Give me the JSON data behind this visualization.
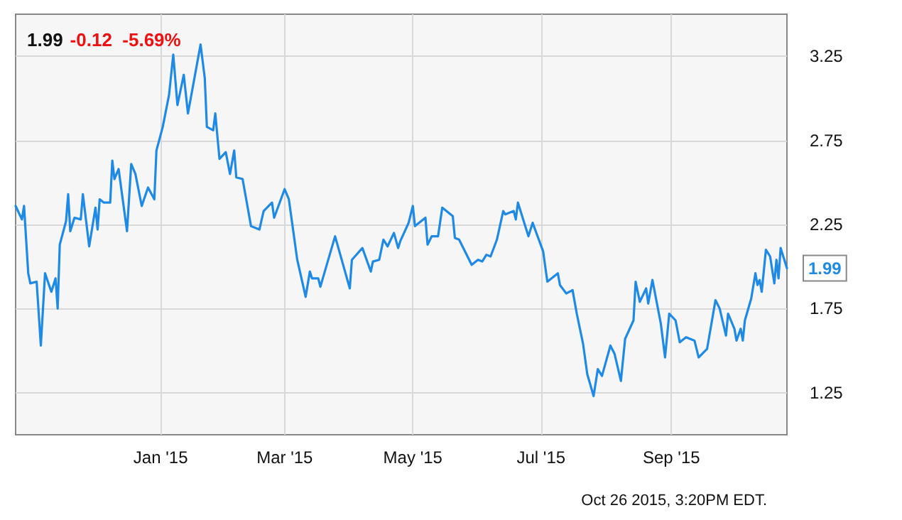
{
  "chart_data": {
    "type": "line",
    "title": "1.99",
    "subtitle": "-0.12  -5.69%",
    "x": [
      "2014-10-24",
      "2014-10-27",
      "2014-10-28",
      "2014-10-30",
      "2014-10-31",
      "2014-11-03",
      "2014-11-05",
      "2014-11-07",
      "2014-11-10",
      "2014-11-12",
      "2014-11-13",
      "2014-11-14",
      "2014-11-17",
      "2014-11-18",
      "2014-11-19",
      "2014-11-21",
      "2014-11-24",
      "2014-11-25",
      "2014-11-28",
      "2014-12-01",
      "2014-12-02",
      "2014-12-03",
      "2014-12-05",
      "2014-12-08",
      "2014-12-09",
      "2014-12-10",
      "2014-12-12",
      "2014-12-16",
      "2014-12-18",
      "2014-12-20",
      "2014-12-23",
      "2014-12-26",
      "2014-12-29",
      "2014-12-30",
      "2015-01-02",
      "2015-01-05",
      "2015-01-07",
      "2015-01-09",
      "2015-01-12",
      "2015-01-14",
      "2015-01-20",
      "2015-01-22",
      "2015-01-23",
      "2015-01-26",
      "2015-01-27",
      "2015-01-29",
      "2015-02-01",
      "2015-02-03",
      "2015-02-05",
      "2015-02-06",
      "2015-02-09",
      "2015-02-13",
      "2015-02-17",
      "2015-02-19",
      "2015-02-23",
      "2015-02-24",
      "2015-03-01",
      "2015-03-03",
      "2015-03-07",
      "2015-03-11",
      "2015-03-13",
      "2015-03-14",
      "2015-03-17",
      "2015-03-18",
      "2015-03-25",
      "2015-04-01",
      "2015-04-02",
      "2015-04-07",
      "2015-04-11",
      "2015-04-12",
      "2015-04-15",
      "2015-04-17",
      "2015-04-19",
      "2015-04-22",
      "2015-04-24",
      "2015-04-25",
      "2015-04-29",
      "2015-05-01",
      "2015-05-02",
      "2015-05-07",
      "2015-05-08",
      "2015-05-10",
      "2015-05-13",
      "2015-05-15",
      "2015-05-20",
      "2015-05-21",
      "2015-05-23",
      "2015-05-29",
      "2015-06-01",
      "2015-06-03",
      "2015-06-05",
      "2015-06-07",
      "2015-06-10",
      "2015-06-13",
      "2015-06-14",
      "2015-06-18",
      "2015-06-19",
      "2015-06-20",
      "2015-06-25",
      "2015-06-27",
      "2015-07-02",
      "2015-07-04",
      "2015-07-09",
      "2015-07-10",
      "2015-07-13",
      "2015-07-16",
      "2015-07-18",
      "2015-07-21",
      "2015-07-23",
      "2015-07-26",
      "2015-07-28",
      "2015-07-30",
      "2015-08-03",
      "2015-08-05",
      "2015-08-08",
      "2015-08-10",
      "2015-08-14",
      "2015-08-15",
      "2015-08-17",
      "2015-08-20",
      "2015-08-21",
      "2015-08-23",
      "2015-08-27",
      "2015-08-29",
      "2015-08-31",
      "2015-09-03",
      "2015-09-05",
      "2015-09-08",
      "2015-09-12",
      "2015-09-14",
      "2015-09-18",
      "2015-09-22",
      "2015-09-24",
      "2015-09-27",
      "2015-09-28",
      "2015-10-01",
      "2015-10-02",
      "2015-10-04",
      "2015-10-05",
      "2015-10-06",
      "2015-10-09",
      "2015-10-11",
      "2015-10-12",
      "2015-10-13",
      "2015-10-14",
      "2015-10-16",
      "2015-10-18",
      "2015-10-20",
      "2015-10-21",
      "2015-10-22",
      "2015-10-23",
      "2015-10-26"
    ],
    "series": [
      {
        "color": "#1f8ae6",
        "values": [
          2.36,
          2.28,
          2.36,
          1.96,
          1.9,
          1.91,
          1.53,
          1.96,
          1.85,
          1.93,
          1.75,
          2.13,
          2.27,
          2.43,
          2.21,
          2.29,
          2.28,
          2.43,
          2.12,
          2.35,
          2.22,
          2.4,
          2.38,
          2.38,
          2.63,
          2.52,
          2.58,
          2.21,
          2.61,
          2.55,
          2.36,
          2.47,
          2.4,
          2.69,
          2.83,
          3.02,
          3.26,
          2.96,
          3.14,
          2.91,
          3.32,
          3.12,
          2.83,
          2.81,
          2.91,
          2.64,
          2.68,
          2.55,
          2.69,
          2.53,
          2.52,
          2.24,
          2.22,
          2.33,
          2.38,
          2.29,
          2.46,
          2.4,
          2.04,
          1.82,
          1.97,
          1.93,
          1.93,
          1.88,
          2.18,
          1.87,
          2.04,
          2.11,
          1.97,
          2.03,
          2.04,
          2.16,
          2.12,
          2.2,
          2.11,
          2.15,
          2.26,
          2.36,
          2.24,
          2.29,
          2.13,
          2.18,
          2.18,
          2.35,
          2.3,
          2.17,
          2.16,
          2.01,
          2.04,
          2.03,
          2.07,
          2.06,
          2.16,
          2.33,
          2.31,
          2.33,
          2.28,
          2.38,
          2.18,
          2.26,
          2.09,
          1.91,
          1.96,
          1.89,
          1.84,
          1.86,
          1.72,
          1.54,
          1.36,
          1.23,
          1.39,
          1.35,
          1.53,
          1.48,
          1.32,
          1.57,
          1.68,
          1.91,
          1.79,
          1.87,
          1.78,
          1.92,
          1.66,
          1.46,
          1.72,
          1.68,
          1.55,
          1.58,
          1.56,
          1.46,
          1.51,
          1.8,
          1.75,
          1.59,
          1.72,
          1.63,
          1.56,
          1.63,
          1.56,
          1.68,
          1.81,
          1.96,
          1.89,
          1.92,
          1.85,
          2.1,
          2.06,
          1.9,
          2.04,
          1.93,
          2.11,
          1.99
        ]
      }
    ],
    "xlim": [
      "2014-10-24",
      "2015-10-26"
    ],
    "xticks": [
      {
        "value": "2015-01-01",
        "label": "Jan '15"
      },
      {
        "value": "2015-03-01",
        "label": "Mar '15"
      },
      {
        "value": "2015-05-01",
        "label": "May '15"
      },
      {
        "value": "2015-07-01",
        "label": "Jul '15"
      },
      {
        "value": "2015-09-01",
        "label": "Sep '15"
      }
    ],
    "ylim": [
      1,
      3.5
    ],
    "yticks": [
      1.25,
      1.75,
      2.25,
      2.75,
      3.25
    ],
    "grid": true,
    "marker": "none",
    "line_style": "solid",
    "annotations": [
      "Oct 26 2015, 3:20PM EDT.",
      {
        "text": "1.99",
        "x": "2015-10-26",
        "y": 1.99
      }
    ]
  }
}
